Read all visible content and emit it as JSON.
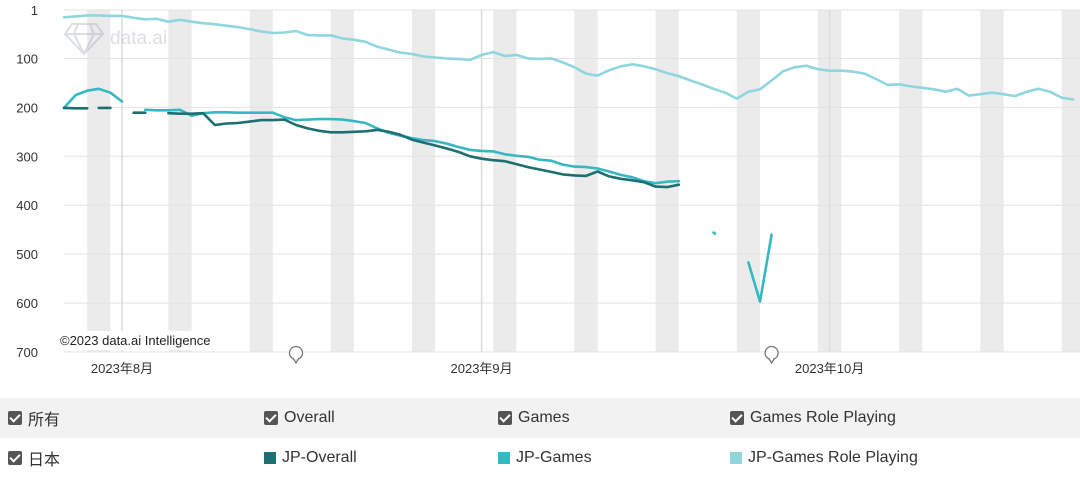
{
  "watermark": "data.ai",
  "credit": "©2023 data.ai Intelligence",
  "filters": {
    "row1": {
      "all_label": "所有",
      "overall_label": "Overall",
      "games_label": "Games",
      "rpg_label": "Games Role Playing"
    },
    "row2": {
      "country_label": "日本"
    }
  },
  "chart_data": {
    "type": "line",
    "y_inverted": true,
    "ylim": [
      1,
      700
    ],
    "yticks": [
      1,
      100,
      200,
      300,
      400,
      500,
      600,
      700
    ],
    "x_labels": [
      {
        "day": 5,
        "label": "2023年8月"
      },
      {
        "day": 36,
        "label": "2023年9月"
      },
      {
        "day": 66,
        "label": "2023年10月"
      }
    ],
    "grid": true,
    "weekend_shading": true,
    "legend_position": "bottom",
    "series": [
      {
        "name": "JP-Overall",
        "color": "#1d6f72",
        "segments": [
          [
            [
              0,
              201
            ],
            [
              1,
              202
            ],
            [
              2,
              202
            ]
          ],
          [
            [
              3,
              201
            ],
            [
              4,
              201
            ]
          ],
          [
            [
              6,
              211
            ],
            [
              7,
              211
            ]
          ],
          [
            [
              9,
              212
            ],
            [
              10,
              213
            ],
            [
              11,
              213
            ],
            [
              12,
              212
            ],
            [
              13,
              236
            ],
            [
              14,
              233
            ],
            [
              15,
              232
            ],
            [
              16,
              229
            ],
            [
              17,
              226
            ],
            [
              18,
              226
            ],
            [
              19,
              225
            ],
            [
              20,
              236
            ],
            [
              21,
              243
            ],
            [
              22,
              248
            ],
            [
              23,
              251
            ],
            [
              24,
              251
            ],
            [
              25,
              250
            ],
            [
              26,
              249
            ],
            [
              27,
              246
            ],
            [
              28,
              250
            ],
            [
              29,
              256
            ],
            [
              30,
              266
            ],
            [
              31,
              272
            ],
            [
              32,
              278
            ],
            [
              33,
              284
            ],
            [
              34,
              291
            ],
            [
              35,
              300
            ],
            [
              36,
              305
            ],
            [
              37,
              308
            ],
            [
              38,
              310
            ],
            [
              39,
              316
            ],
            [
              40,
              322
            ],
            [
              41,
              327
            ],
            [
              42,
              332
            ],
            [
              43,
              337
            ],
            [
              44,
              339
            ],
            [
              45,
              340
            ],
            [
              46,
              331
            ],
            [
              47,
              341
            ],
            [
              48,
              346
            ],
            [
              49,
              349
            ],
            [
              50,
              353
            ],
            [
              51,
              362
            ],
            [
              52,
              363
            ],
            [
              53,
              358
            ]
          ]
        ]
      },
      {
        "name": "JP-Games",
        "color": "#36b8c3",
        "segments": [
          [
            [
              0,
              201
            ],
            [
              1,
              175
            ],
            [
              2,
              166
            ],
            [
              3,
              162
            ],
            [
              4,
              170
            ],
            [
              5,
              188
            ]
          ],
          [
            [
              7,
              205
            ],
            [
              8,
              206
            ],
            [
              9,
              206
            ],
            [
              10,
              205
            ],
            [
              11,
              217
            ],
            [
              12,
              212
            ],
            [
              13,
              210
            ],
            [
              14,
              210
            ],
            [
              15,
              211
            ],
            [
              16,
              211
            ],
            [
              17,
              211
            ],
            [
              18,
              211
            ],
            [
              19,
              220
            ],
            [
              20,
              226
            ],
            [
              21,
              225
            ],
            [
              22,
              224
            ],
            [
              23,
              224
            ],
            [
              24,
              225
            ],
            [
              25,
              228
            ],
            [
              26,
              232
            ],
            [
              27,
              243
            ],
            [
              28,
              252
            ],
            [
              29,
              258
            ],
            [
              30,
              263
            ],
            [
              31,
              267
            ],
            [
              32,
              269
            ],
            [
              33,
              274
            ],
            [
              34,
              281
            ],
            [
              35,
              287
            ],
            [
              36,
              289
            ],
            [
              37,
              290
            ],
            [
              38,
              296
            ],
            [
              39,
              299
            ],
            [
              40,
              301
            ],
            [
              41,
              307
            ],
            [
              42,
              309
            ],
            [
              43,
              317
            ],
            [
              44,
              321
            ],
            [
              45,
              322
            ],
            [
              46,
              325
            ],
            [
              47,
              331
            ],
            [
              48,
              338
            ],
            [
              49,
              343
            ],
            [
              50,
              351
            ],
            [
              51,
              355
            ],
            [
              52,
              352
            ],
            [
              53,
              351
            ]
          ],
          [
            [
              56,
              456
            ],
            [
              56.12,
              458
            ]
          ],
          [
            [
              59,
              517
            ],
            [
              60,
              597
            ],
            [
              61,
              460
            ]
          ]
        ]
      },
      {
        "name": "JP-Games Role Playing",
        "color": "#8fd6df",
        "segments": [
          [
            [
              0,
              16
            ],
            [
              1,
              14
            ],
            [
              2,
              12
            ],
            [
              3,
              12
            ],
            [
              4,
              13
            ],
            [
              5,
              13
            ],
            [
              6,
              17
            ],
            [
              7,
              20
            ],
            [
              8,
              19
            ],
            [
              9,
              25
            ],
            [
              10,
              21
            ],
            [
              11,
              25
            ],
            [
              12,
              28
            ],
            [
              13,
              30
            ],
            [
              14,
              33
            ],
            [
              15,
              36
            ],
            [
              16,
              40
            ],
            [
              17,
              45
            ],
            [
              18,
              48
            ],
            [
              19,
              47
            ],
            [
              20,
              44
            ],
            [
              21,
              52
            ],
            [
              22,
              53
            ],
            [
              23,
              53
            ],
            [
              24,
              59
            ],
            [
              25,
              62
            ],
            [
              26,
              66
            ],
            [
              27,
              76
            ],
            [
              28,
              82
            ],
            [
              29,
              88
            ],
            [
              30,
              91
            ],
            [
              31,
              96
            ],
            [
              32,
              98
            ],
            [
              33,
              100
            ],
            [
              34,
              101
            ],
            [
              35,
              103
            ],
            [
              36,
              93
            ],
            [
              37,
              87
            ],
            [
              38,
              95
            ],
            [
              39,
              93
            ],
            [
              40,
              100
            ],
            [
              41,
              101
            ],
            [
              42,
              100
            ],
            [
              43,
              108
            ],
            [
              44,
              118
            ],
            [
              45,
              131
            ],
            [
              46,
              135
            ],
            [
              47,
              124
            ],
            [
              48,
              116
            ],
            [
              49,
              112
            ],
            [
              50,
              116
            ],
            [
              51,
              122
            ],
            [
              52,
              130
            ],
            [
              53,
              136
            ],
            [
              54,
              145
            ],
            [
              55,
              153
            ],
            [
              56,
              162
            ],
            [
              57,
              170
            ],
            [
              58,
              182
            ],
            [
              59,
              168
            ],
            [
              60,
              163
            ],
            [
              61,
              145
            ],
            [
              62,
              126
            ],
            [
              63,
              118
            ],
            [
              64,
              115
            ],
            [
              65,
              122
            ],
            [
              66,
              125
            ],
            [
              67,
              125
            ],
            [
              68,
              127
            ],
            [
              69,
              131
            ],
            [
              70,
              142
            ],
            [
              71,
              154
            ],
            [
              72,
              153
            ],
            [
              73,
              157
            ],
            [
              74,
              160
            ],
            [
              75,
              163
            ],
            [
              76,
              168
            ],
            [
              77,
              162
            ],
            [
              78,
              176
            ],
            [
              79,
              173
            ],
            [
              80,
              170
            ],
            [
              81,
              173
            ],
            [
              82,
              177
            ],
            [
              83,
              168
            ],
            [
              84,
              162
            ],
            [
              85,
              168
            ],
            [
              86,
              180
            ],
            [
              87,
              184
            ]
          ]
        ]
      }
    ]
  }
}
